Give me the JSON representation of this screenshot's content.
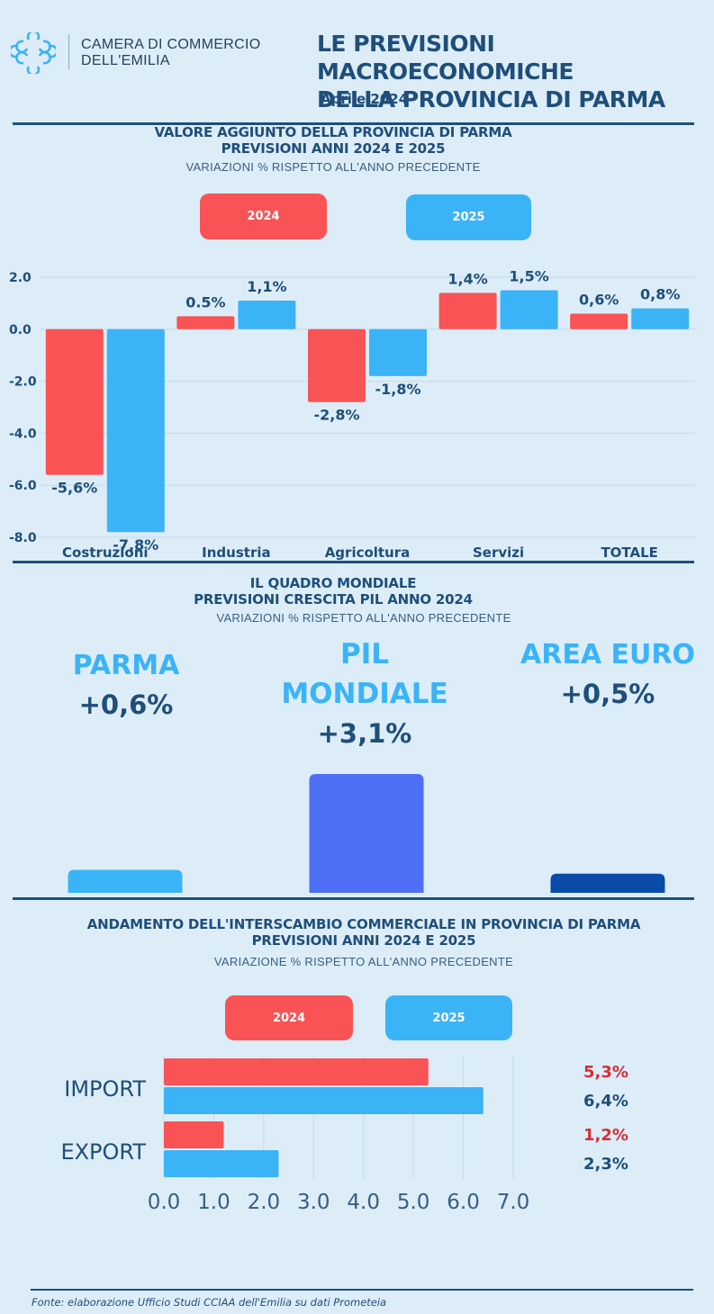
{
  "header": {
    "org_line1": "CAMERA DI COMMERCIO",
    "org_line2": "DELL'EMILIA",
    "title_line1": "LE PREVISIONI MACROECONOMICHE",
    "title_line2": "DELLA PROVINCIA DI PARMA",
    "date": "Aprile 2024"
  },
  "colors": {
    "y2024": "#f95356",
    "y2025": "#3bb3f7",
    "navy": "#1f4e79",
    "pil_world": "#4f6ff7",
    "area_euro": "#0a4aa8"
  },
  "section1": {
    "title_line1": "VALORE AGGIUNTO DELLA PROVINCIA DI PARMA",
    "title_line2": "PREVISIONI ANNI 2024 E 2025",
    "subtitle": "VARIAZIONI % RISPETTO ALL'ANNO PRECEDENTE",
    "legend": [
      "2024",
      "2025"
    ]
  },
  "section2": {
    "title_line1": "IL QUADRO MONDIALE",
    "title_line2": "PREVISIONI CRESCITA PIL ANNO 2024",
    "subtitle": "VARIAZIONI % RISPETTO ALL'ANNO PRECEDENTE",
    "items": [
      {
        "label": "PARMA",
        "value": "+0,6%"
      },
      {
        "label_line1": "PIL",
        "label_line2": "MONDIALE",
        "value": "+3,1%"
      },
      {
        "label": "AREA EURO",
        "value": "+0,5%"
      }
    ]
  },
  "section3": {
    "title_line1": "ANDAMENTO DELL'INTERSCAMBIO COMMERCIALE IN PROVINCIA DI PARMA",
    "title_line2": "PREVISIONI ANNI 2024 E 2025",
    "subtitle": "VARIAZIONE % RISPETTO ALL'ANNO PRECEDENTE",
    "legend": [
      "2024",
      "2025"
    ]
  },
  "footer": "Fonte: elaborazione Ufficio Studi CCIAA dell'Emilia su dati Prometeia",
  "chart_data": [
    {
      "type": "bar",
      "categories": [
        "Costruzioni",
        "Industria",
        "Agricoltura",
        "Servizi",
        "TOTALE"
      ],
      "series": [
        {
          "name": "2024",
          "values": [
            -5.6,
            0.5,
            -2.8,
            1.4,
            0.6
          ],
          "labels": [
            "-5,6%",
            "0.5%",
            "-2,8%",
            "1,4%",
            "0,6%"
          ]
        },
        {
          "name": "2025",
          "values": [
            -7.8,
            1.1,
            -1.8,
            1.5,
            0.8
          ],
          "labels": [
            "-7,8%",
            "1,1%",
            "-1,8%",
            "1,5%",
            "0,8%"
          ]
        }
      ],
      "yticks": [
        "2.0",
        "0.0",
        "-2.0",
        "-4.0",
        "-6.0",
        "-8.0"
      ],
      "ylim": [
        -8,
        2
      ],
      "grid": true
    },
    {
      "type": "bar",
      "categories": [
        "PARMA",
        "PIL MONDIALE",
        "AREA EURO"
      ],
      "values": [
        0.6,
        3.1,
        0.5
      ]
    },
    {
      "type": "bar",
      "orientation": "horizontal",
      "categories": [
        "IMPORT",
        "EXPORT"
      ],
      "series": [
        {
          "name": "2024",
          "values": [
            5.3,
            1.2
          ],
          "labels": [
            "5,3%",
            "1,2%"
          ]
        },
        {
          "name": "2025",
          "values": [
            6.4,
            2.3
          ],
          "labels": [
            "6,4%",
            "2,3%"
          ]
        }
      ],
      "xticks": [
        "0.0",
        "1.0",
        "2.0",
        "3.0",
        "4.0",
        "5.0",
        "6.0",
        "7.0"
      ],
      "xlim": [
        0,
        7
      ],
      "grid": true
    }
  ]
}
